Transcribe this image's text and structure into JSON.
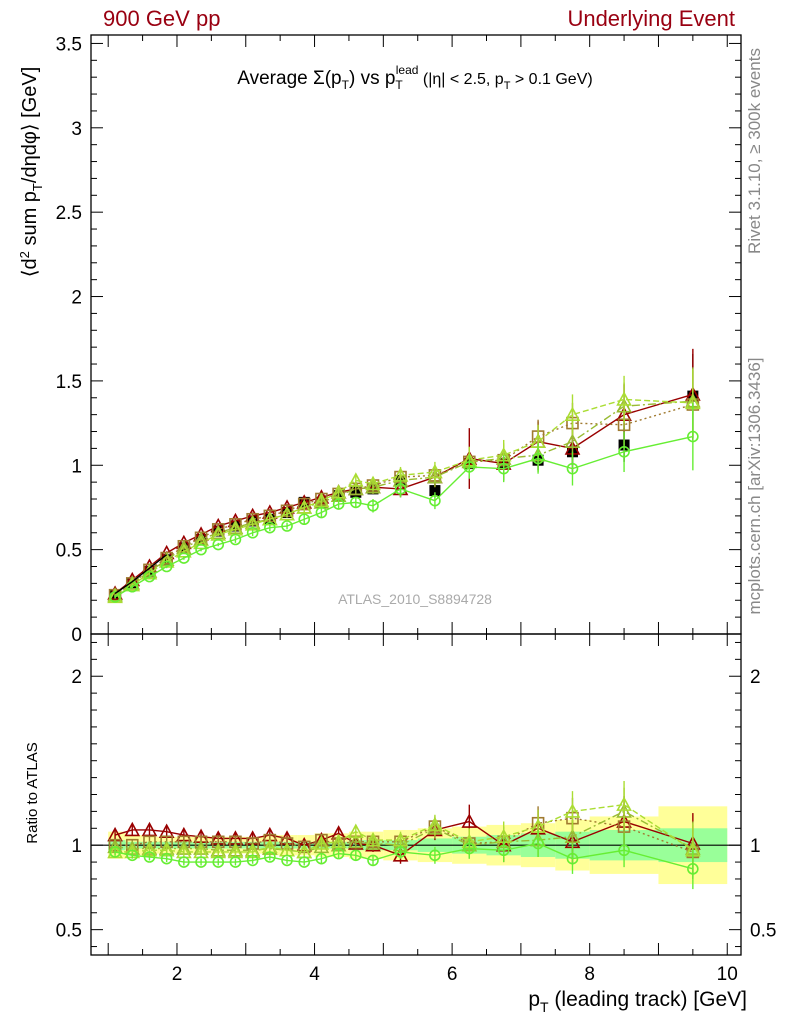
{
  "header": {
    "left": "900 GeV pp",
    "right": "Underlying Event"
  },
  "side_labels": {
    "rivet": "Rivet 3.1.10, ≥ 300k events",
    "mcplots": "mcplots.cern.ch [arXiv:1306.3436]"
  },
  "colors": {
    "header": "#990011",
    "data": "#000000",
    "band_outer": "#ffff99",
    "band_inner": "#99ff99",
    "mc_darkred": "#990000",
    "mc_brown": "#a07a30",
    "mc_olive": "#99bb33",
    "mc_yellowgreen": "#aadd33",
    "mc_green": "#66ee33"
  },
  "chart_data": [
    {
      "type": "scatter",
      "panel": "main",
      "title": "Average Σ(p_T) vs p_T^lead (|η| < 2.5, p_T > 0.1 GeV)",
      "ylabel": "⟨d² sum p_T/dηdφ⟩ [GeV]",
      "watermark": "ATLAS_2010_S8894728",
      "xlim": [
        0.75,
        10.2
      ],
      "ylim": [
        0,
        3.55
      ],
      "yticks": [
        {
          "v": 0,
          "label": "0"
        },
        {
          "v": 0.5,
          "label": "0.5"
        },
        {
          "v": 1,
          "label": "1"
        },
        {
          "v": 1.5,
          "label": "1.5"
        },
        {
          "v": 2,
          "label": "2"
        },
        {
          "v": 2.5,
          "label": "2.5"
        },
        {
          "v": 3,
          "label": "3"
        },
        {
          "v": 3.5,
          "label": "3.5"
        }
      ],
      "x": [
        1.1,
        1.35,
        1.6,
        1.85,
        2.1,
        2.35,
        2.6,
        2.85,
        3.1,
        3.35,
        3.6,
        3.85,
        4.1,
        4.35,
        4.6,
        4.85,
        5.25,
        5.75,
        6.25,
        6.75,
        7.25,
        7.75,
        8.5,
        9.5
      ],
      "series": [
        {
          "name": "ATLAS",
          "style": "data",
          "color": "#000000",
          "values": [
            0.23,
            0.3,
            0.37,
            0.44,
            0.51,
            0.56,
            0.61,
            0.64,
            0.67,
            0.68,
            0.72,
            0.78,
            0.78,
            0.82,
            0.84,
            0.86,
            0.91,
            0.85,
            1.01,
            1.01,
            1.03,
            1.08,
            1.12,
            1.41
          ],
          "errors": [
            0.01,
            0.01,
            0.01,
            0.01,
            0.01,
            0.01,
            0.01,
            0.01,
            0.02,
            0.02,
            0.02,
            0.02,
            0.02,
            0.02,
            0.03,
            0.03,
            0.03,
            0.04,
            0.05,
            0.06,
            0.06,
            0.08,
            0.1,
            0.25
          ]
        },
        {
          "style": "triangle",
          "color": "#990000",
          "dash": "",
          "values": [
            0.24,
            0.32,
            0.4,
            0.48,
            0.54,
            0.59,
            0.64,
            0.67,
            0.7,
            0.72,
            0.75,
            0.78,
            0.81,
            0.84,
            0.86,
            0.87,
            0.86,
            0.93,
            1.04,
            1.01,
            1.14,
            1.1,
            1.3,
            1.42
          ],
          "errors": [
            0.01,
            0.01,
            0.01,
            0.01,
            0.01,
            0.01,
            0.01,
            0.02,
            0.02,
            0.02,
            0.02,
            0.03,
            0.03,
            0.03,
            0.03,
            0.04,
            0.05,
            0.06,
            0.18,
            0.1,
            0.12,
            0.14,
            0.18,
            0.27
          ]
        },
        {
          "style": "square",
          "color": "#a07a30",
          "dash": "2,3",
          "values": [
            0.23,
            0.3,
            0.38,
            0.45,
            0.52,
            0.57,
            0.62,
            0.65,
            0.68,
            0.7,
            0.73,
            0.77,
            0.8,
            0.83,
            0.86,
            0.88,
            0.93,
            0.94,
            1.02,
            1.03,
            1.17,
            1.25,
            1.24,
            1.36
          ],
          "errors": [
            0.01,
            0.01,
            0.01,
            0.01,
            0.01,
            0.01,
            0.01,
            0.02,
            0.02,
            0.02,
            0.02,
            0.03,
            0.03,
            0.03,
            0.03,
            0.04,
            0.05,
            0.06,
            0.08,
            0.09,
            0.1,
            0.12,
            0.14,
            0.2
          ]
        },
        {
          "style": "triangle",
          "color": "#99bb33",
          "dash": "8,3,2,3",
          "values": [
            0.23,
            0.3,
            0.37,
            0.44,
            0.51,
            0.56,
            0.6,
            0.63,
            0.66,
            0.68,
            0.71,
            0.75,
            0.78,
            0.82,
            0.86,
            0.87,
            0.91,
            0.93,
            1.02,
            1.04,
            1.06,
            1.14,
            1.35,
            1.38
          ],
          "errors": [
            0.01,
            0.01,
            0.01,
            0.01,
            0.01,
            0.01,
            0.01,
            0.02,
            0.02,
            0.02,
            0.02,
            0.03,
            0.03,
            0.03,
            0.03,
            0.04,
            0.05,
            0.06,
            0.08,
            0.09,
            0.1,
            0.12,
            0.14,
            0.2
          ]
        },
        {
          "style": "triangle",
          "color": "#aadd33",
          "dash": "6,3",
          "values": [
            0.22,
            0.29,
            0.36,
            0.43,
            0.49,
            0.54,
            0.59,
            0.62,
            0.65,
            0.68,
            0.71,
            0.75,
            0.79,
            0.84,
            0.91,
            0.89,
            0.94,
            0.96,
            1.03,
            1.06,
            1.14,
            1.3,
            1.39,
            1.37
          ],
          "errors": [
            0.01,
            0.01,
            0.01,
            0.01,
            0.01,
            0.01,
            0.01,
            0.02,
            0.02,
            0.02,
            0.02,
            0.03,
            0.03,
            0.03,
            0.03,
            0.04,
            0.05,
            0.06,
            0.08,
            0.09,
            0.1,
            0.12,
            0.14,
            0.2
          ]
        },
        {
          "style": "circle",
          "color": "#66ee33",
          "dash": "",
          "values": [
            0.22,
            0.28,
            0.34,
            0.4,
            0.45,
            0.5,
            0.53,
            0.56,
            0.6,
            0.63,
            0.64,
            0.68,
            0.72,
            0.77,
            0.78,
            0.76,
            0.86,
            0.79,
            0.99,
            0.98,
            1.04,
            0.98,
            1.08,
            1.17
          ],
          "errors": [
            0.01,
            0.01,
            0.01,
            0.01,
            0.01,
            0.01,
            0.01,
            0.02,
            0.02,
            0.02,
            0.02,
            0.03,
            0.03,
            0.03,
            0.03,
            0.04,
            0.05,
            0.05,
            0.07,
            0.08,
            0.09,
            0.1,
            0.12,
            0.2
          ]
        }
      ],
      "mc_reference": {
        "x": [
          1.1,
          1.35,
          1.6,
          1.85
        ],
        "values": [
          0.24,
          0.31,
          0.39,
          0.47
        ],
        "color": "#000000"
      }
    },
    {
      "type": "scatter",
      "panel": "ratio",
      "ylabel": "Ratio to ATLAS",
      "xlabel": "p_T (leading track) [GeV]",
      "xlim": [
        0.75,
        10.2
      ],
      "ylim": [
        0.35,
        2.25
      ],
      "xticks": [
        {
          "v": 2,
          "label": "2"
        },
        {
          "v": 4,
          "label": "4"
        },
        {
          "v": 6,
          "label": "6"
        },
        {
          "v": 8,
          "label": "8"
        },
        {
          "v": 10,
          "label": "10"
        }
      ],
      "yticks": [
        {
          "v": 0.5,
          "label": "0.5"
        },
        {
          "v": 1,
          "label": "1"
        },
        {
          "v": 2,
          "label": "2"
        }
      ],
      "bands": {
        "edges": [
          1.0,
          1.25,
          1.5,
          1.75,
          2.0,
          2.25,
          2.5,
          2.75,
          3.0,
          3.25,
          3.5,
          3.75,
          4.0,
          4.25,
          4.5,
          4.75,
          5.0,
          5.5,
          6.0,
          6.5,
          7.0,
          7.5,
          8.0,
          9.0,
          10.0
        ],
        "outer": [
          0.08,
          0.06,
          0.05,
          0.05,
          0.05,
          0.05,
          0.05,
          0.05,
          0.05,
          0.06,
          0.06,
          0.06,
          0.07,
          0.07,
          0.08,
          0.08,
          0.09,
          0.1,
          0.11,
          0.12,
          0.13,
          0.15,
          0.17,
          0.23,
          0.24
        ],
        "inner": [
          0.03,
          0.02,
          0.02,
          0.02,
          0.02,
          0.02,
          0.02,
          0.02,
          0.02,
          0.02,
          0.02,
          0.02,
          0.02,
          0.02,
          0.03,
          0.03,
          0.03,
          0.04,
          0.05,
          0.06,
          0.07,
          0.08,
          0.09,
          0.1,
          0.1
        ]
      },
      "series": [
        {
          "style": "triangle",
          "color": "#990000",
          "dash": "",
          "values": [
            1.06,
            1.09,
            1.09,
            1.08,
            1.06,
            1.05,
            1.04,
            1.04,
            1.04,
            1.06,
            1.04,
            1.0,
            1.03,
            1.07,
            1.01,
            1.0,
            0.94,
            1.09,
            1.14,
            1.0,
            1.1,
            1.02,
            1.14,
            1.01
          ],
          "errors": [
            0.03,
            0.03,
            0.03,
            0.03,
            0.03,
            0.03,
            0.03,
            0.03,
            0.03,
            0.03,
            0.03,
            0.03,
            0.03,
            0.03,
            0.04,
            0.04,
            0.05,
            0.06,
            0.1,
            0.1,
            0.11,
            0.13,
            0.15,
            0.18
          ]
        },
        {
          "style": "square",
          "color": "#a07a30",
          "dash": "2,3",
          "values": [
            1.0,
            1.0,
            1.02,
            1.02,
            1.02,
            1.02,
            1.02,
            1.02,
            1.01,
            1.03,
            1.01,
            0.99,
            1.03,
            1.01,
            1.02,
            1.02,
            1.02,
            1.11,
            1.01,
            1.02,
            1.13,
            1.16,
            1.11,
            0.96
          ],
          "errors": [
            0.03,
            0.03,
            0.03,
            0.03,
            0.03,
            0.03,
            0.03,
            0.03,
            0.03,
            0.03,
            0.03,
            0.03,
            0.03,
            0.03,
            0.04,
            0.04,
            0.05,
            0.06,
            0.08,
            0.09,
            0.1,
            0.12,
            0.14,
            0.16
          ]
        },
        {
          "style": "triangle",
          "color": "#99bb33",
          "dash": "8,3,2,3",
          "values": [
            0.99,
            0.98,
            0.98,
            0.98,
            0.98,
            0.98,
            0.97,
            0.97,
            0.97,
            0.98,
            0.97,
            0.96,
            0.99,
            1.0,
            1.02,
            1.01,
            1.0,
            1.1,
            1.0,
            1.02,
            1.03,
            1.05,
            1.2,
            0.98
          ],
          "errors": [
            0.03,
            0.03,
            0.03,
            0.03,
            0.03,
            0.03,
            0.03,
            0.03,
            0.03,
            0.03,
            0.03,
            0.03,
            0.03,
            0.03,
            0.04,
            0.04,
            0.05,
            0.06,
            0.08,
            0.09,
            0.1,
            0.12,
            0.14,
            0.16
          ]
        },
        {
          "style": "triangle",
          "color": "#aadd33",
          "dash": "6,3",
          "values": [
            0.96,
            0.96,
            0.97,
            0.97,
            0.96,
            0.96,
            0.96,
            0.96,
            0.96,
            0.99,
            0.97,
            0.96,
            1.01,
            1.02,
            1.08,
            1.03,
            1.03,
            1.12,
            1.02,
            1.05,
            1.11,
            1.2,
            1.24,
            0.97
          ],
          "errors": [
            0.03,
            0.03,
            0.03,
            0.03,
            0.03,
            0.03,
            0.03,
            0.03,
            0.03,
            0.03,
            0.03,
            0.03,
            0.03,
            0.03,
            0.04,
            0.04,
            0.05,
            0.06,
            0.08,
            0.09,
            0.1,
            0.12,
            0.14,
            0.16
          ]
        },
        {
          "style": "circle",
          "color": "#66ee33",
          "dash": "",
          "values": [
            0.96,
            0.94,
            0.93,
            0.92,
            0.9,
            0.9,
            0.9,
            0.9,
            0.91,
            0.93,
            0.91,
            0.9,
            0.92,
            0.95,
            0.94,
            0.91,
            0.96,
            0.94,
            0.98,
            0.97,
            1.01,
            0.92,
            0.97,
            0.86
          ],
          "errors": [
            0.02,
            0.02,
            0.02,
            0.02,
            0.02,
            0.02,
            0.02,
            0.02,
            0.02,
            0.02,
            0.02,
            0.02,
            0.03,
            0.03,
            0.03,
            0.03,
            0.04,
            0.05,
            0.06,
            0.07,
            0.08,
            0.09,
            0.1,
            0.12
          ]
        }
      ]
    }
  ]
}
